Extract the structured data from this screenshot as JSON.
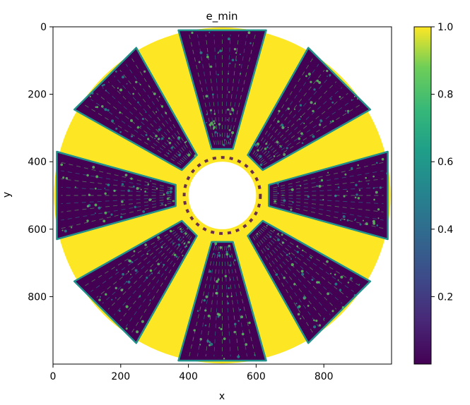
{
  "chart_data": {
    "type": "heatmap",
    "title": "e_min",
    "xlabel": "x",
    "ylabel": "y",
    "xlim": [
      0,
      1000
    ],
    "ylim": [
      1000,
      0
    ],
    "x_ticks": [
      0,
      200,
      400,
      600,
      800
    ],
    "y_ticks": [
      0,
      200,
      400,
      600,
      800
    ],
    "colorbar": {
      "colormap": "viridis",
      "range": [
        0.0,
        1.0
      ],
      "ticks": [
        0.2,
        0.4,
        0.6,
        0.8,
        1.0
      ],
      "tick_labels": [
        "0.2",
        "0.4",
        "0.6",
        "0.8",
        "1.0"
      ]
    },
    "field": {
      "shape": "annulus",
      "center": [
        500,
        500
      ],
      "outer_radius": 497,
      "inner_radius": 100,
      "background_value": 1.0,
      "arm_value": 0.0,
      "arm_count": 8,
      "arm_angles_deg": [
        0,
        45,
        90,
        135,
        180,
        225,
        270,
        315
      ],
      "description_values": "yellow field at 1.0 with eight dark radial textured arms near 0.0"
    }
  },
  "colors": {
    "yellow": "#fde725",
    "dark": "#440154",
    "mid": "#21918c",
    "light": "#5ec962"
  }
}
